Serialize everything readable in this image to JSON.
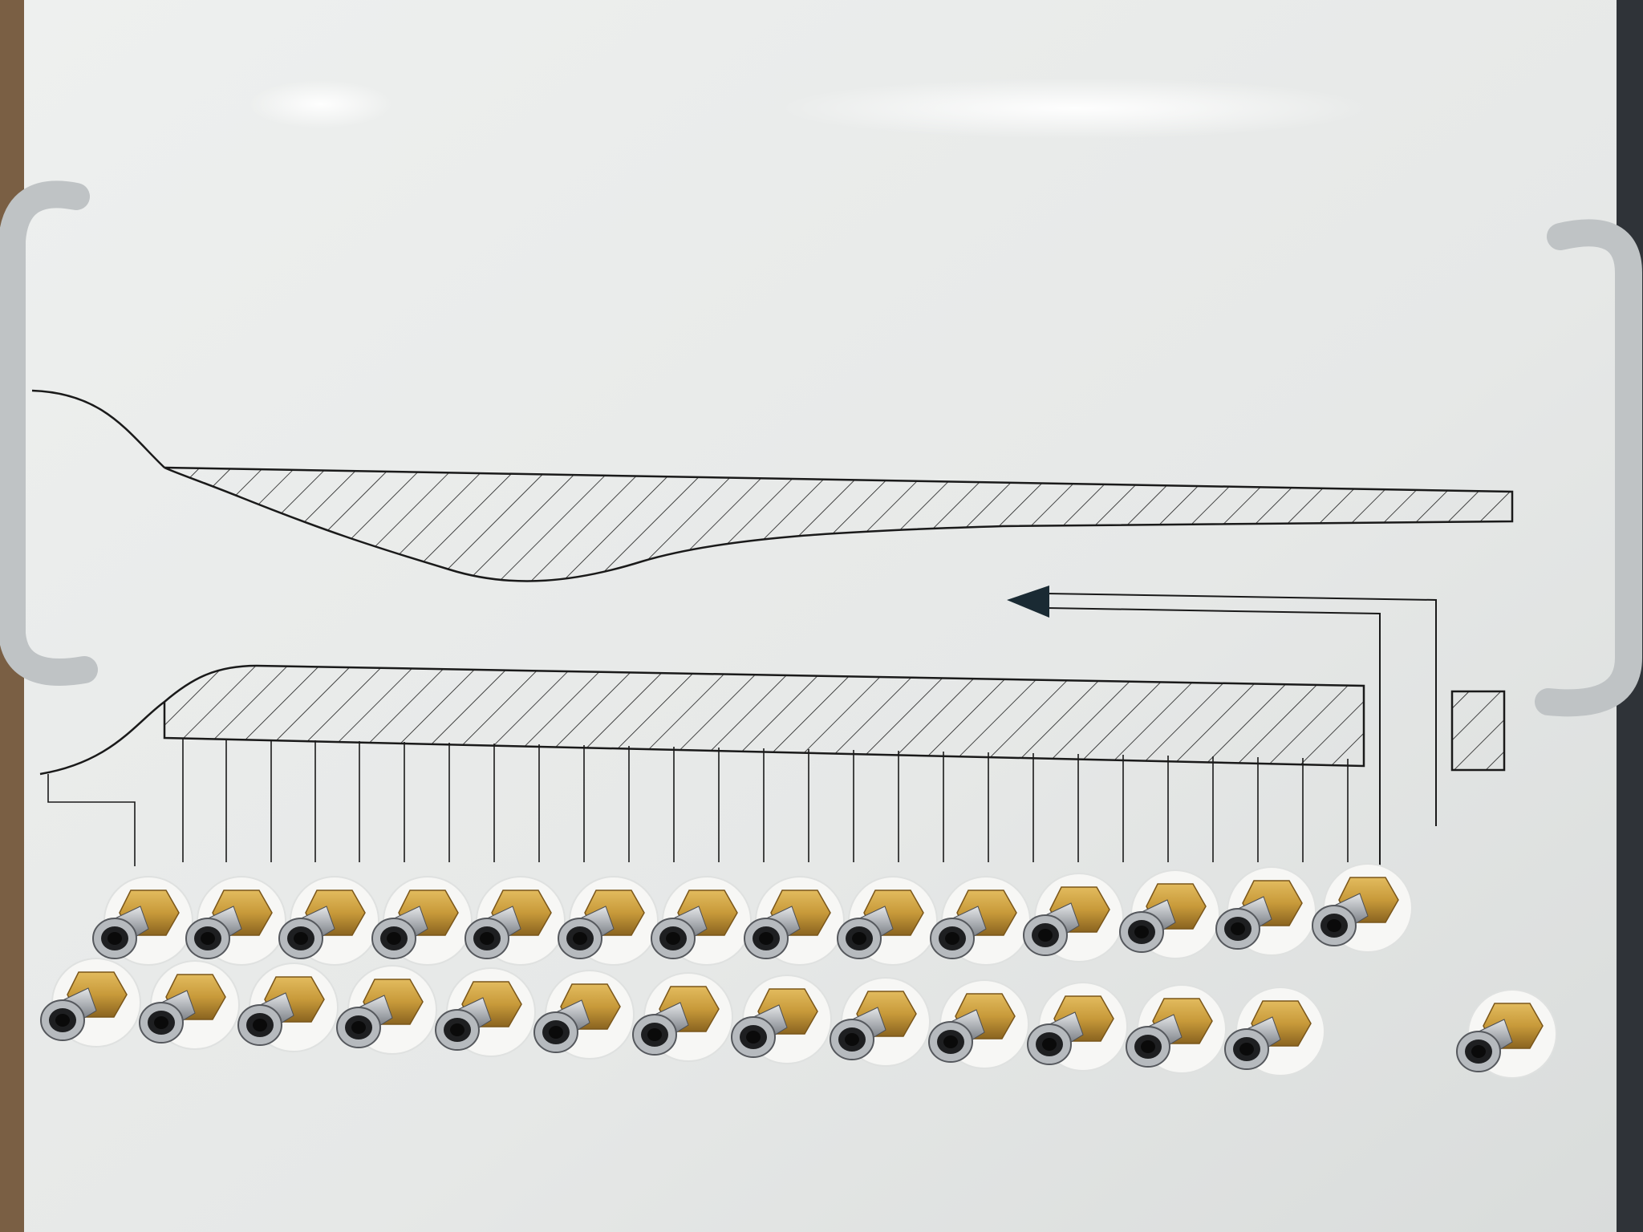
{
  "scene": {
    "subject": "pressure-tap-panel",
    "colors": {
      "background_left": "#8a6a4a",
      "background_right": "#2f3338",
      "panel": "#e9ebea",
      "panel_shadow": "#cfd3d2",
      "line": "#1a1a1a",
      "handle": "#c9ccce",
      "brass": "#c89a3a",
      "brass_dark": "#8a6420",
      "steel": "#b9bcc0",
      "steel_dark": "#5a5d62",
      "washer": "#f7f7f5"
    },
    "icons": [
      "flow-arrow-icon",
      "handle-icon"
    ]
  }
}
